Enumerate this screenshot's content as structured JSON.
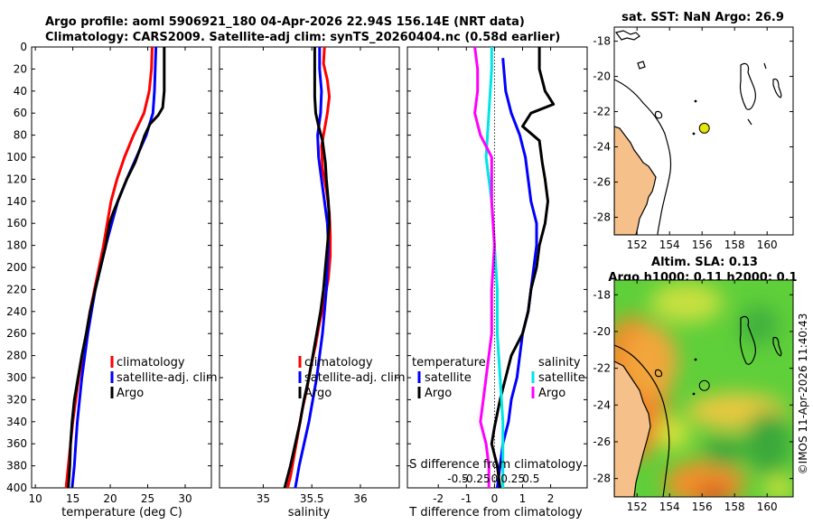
{
  "header": {
    "line1": "Argo profile: aoml 5906921_180 04-Apr-2026 22.94S 156.14E (NRT data)",
    "line2": "Climatology: CARS2009. Satellite-adj clim: synTS_20260404.nc (0.58d earlier)"
  },
  "watermark": "©IMOS 11-Apr-2026 11:40:43",
  "colors": {
    "clim": "#ff0000",
    "sat": "#0000ff",
    "argo": "#000000",
    "sal_sat": "#00e5e5",
    "sal_diff": "#ff00ff",
    "land": "#f5c08a"
  },
  "chart_data": [
    {
      "type": "line",
      "name": "temperature-profile",
      "xlabel": "temperature (deg C)",
      "xlim": [
        9.5,
        33.5
      ],
      "ylim": [
        0,
        400
      ],
      "y_reversed": true,
      "xticks": [
        10,
        15,
        20,
        25,
        30
      ],
      "yticks": [
        0,
        20,
        40,
        60,
        80,
        100,
        120,
        140,
        160,
        180,
        200,
        220,
        240,
        260,
        280,
        300,
        320,
        340,
        360,
        380,
        400
      ],
      "legend": [
        "climatology",
        "satellite-adj. clim",
        "Argo"
      ],
      "series": [
        {
          "name": "climatology",
          "color": "#ff0000",
          "points": [
            [
              25.6,
              0
            ],
            [
              25.5,
              20
            ],
            [
              25.2,
              40
            ],
            [
              24.5,
              60
            ],
            [
              23.1,
              80
            ],
            [
              21.9,
              100
            ],
            [
              20.9,
              120
            ],
            [
              20.1,
              140
            ],
            [
              19.6,
              160
            ],
            [
              19.1,
              180
            ],
            [
              18.5,
              200
            ],
            [
              17.9,
              220
            ],
            [
              17.3,
              240
            ],
            [
              16.8,
              260
            ],
            [
              16.3,
              280
            ],
            [
              15.8,
              300
            ],
            [
              15.4,
              320
            ],
            [
              15.0,
              340
            ],
            [
              14.7,
              360
            ],
            [
              14.4,
              380
            ],
            [
              14.1,
              400
            ]
          ]
        },
        {
          "name": "satellite-adj. clim",
          "color": "#0000ff",
          "points": [
            [
              26.1,
              0
            ],
            [
              26.0,
              20
            ],
            [
              25.9,
              40
            ],
            [
              25.7,
              60
            ],
            [
              24.8,
              80
            ],
            [
              23.5,
              100
            ],
            [
              22.2,
              120
            ],
            [
              21.0,
              140
            ],
            [
              20.2,
              160
            ],
            [
              19.4,
              180
            ],
            [
              18.7,
              200
            ],
            [
              18.0,
              220
            ],
            [
              17.5,
              240
            ],
            [
              17.0,
              260
            ],
            [
              16.6,
              280
            ],
            [
              16.2,
              300
            ],
            [
              15.9,
              320
            ],
            [
              15.6,
              340
            ],
            [
              15.4,
              360
            ],
            [
              15.2,
              380
            ],
            [
              14.9,
              400
            ]
          ]
        },
        {
          "name": "Argo",
          "color": "#000000",
          "points": [
            [
              27.2,
              0
            ],
            [
              27.2,
              20
            ],
            [
              27.2,
              40
            ],
            [
              27.0,
              55
            ],
            [
              26.4,
              62
            ],
            [
              25.3,
              70
            ],
            [
              24.6,
              80
            ],
            [
              24.0,
              92
            ],
            [
              23.3,
              105
            ],
            [
              22.2,
              120
            ],
            [
              21.6,
              130
            ],
            [
              21.0,
              140
            ],
            [
              20.4,
              150
            ],
            [
              19.9,
              160
            ],
            [
              19.4,
              180
            ],
            [
              18.7,
              200
            ],
            [
              18.0,
              220
            ],
            [
              17.3,
              240
            ],
            [
              16.8,
              260
            ],
            [
              16.2,
              280
            ],
            [
              15.7,
              300
            ],
            [
              15.2,
              320
            ],
            [
              14.9,
              340
            ],
            [
              14.7,
              360
            ],
            [
              14.6,
              380
            ],
            [
              14.4,
              400
            ]
          ]
        }
      ]
    },
    {
      "type": "line",
      "name": "salinity-profile",
      "xlabel": "salinity",
      "xlim": [
        34.55,
        36.4
      ],
      "ylim": [
        0,
        400
      ],
      "y_reversed": true,
      "xticks": [
        35,
        35.5,
        36
      ],
      "legend": [
        "climatology",
        "satellite-adj. clim",
        "Argo"
      ],
      "series": [
        {
          "name": "climatology",
          "color": "#ff0000",
          "points": [
            [
              35.63,
              0
            ],
            [
              35.62,
              15
            ],
            [
              35.66,
              30
            ],
            [
              35.68,
              45
            ],
            [
              35.66,
              60
            ],
            [
              35.63,
              75
            ],
            [
              35.6,
              90
            ],
            [
              35.61,
              110
            ],
            [
              35.65,
              130
            ],
            [
              35.68,
              150
            ],
            [
              35.69,
              170
            ],
            [
              35.69,
              190
            ],
            [
              35.67,
              210
            ],
            [
              35.63,
              230
            ],
            [
              35.58,
              250
            ],
            [
              35.54,
              270
            ],
            [
              35.49,
              290
            ],
            [
              35.45,
              310
            ],
            [
              35.4,
              330
            ],
            [
              35.36,
              350
            ],
            [
              35.32,
              370
            ],
            [
              35.28,
              390
            ],
            [
              35.25,
              400
            ]
          ]
        },
        {
          "name": "satellite-adj. clim",
          "color": "#0000ff",
          "points": [
            [
              35.58,
              0
            ],
            [
              35.58,
              20
            ],
            [
              35.6,
              40
            ],
            [
              35.59,
              60
            ],
            [
              35.56,
              80
            ],
            [
              35.57,
              100
            ],
            [
              35.6,
              120
            ],
            [
              35.63,
              140
            ],
            [
              35.66,
              160
            ],
            [
              35.67,
              180
            ],
            [
              35.66,
              200
            ],
            [
              35.65,
              220
            ],
            [
              35.63,
              240
            ],
            [
              35.61,
              260
            ],
            [
              35.58,
              280
            ],
            [
              35.55,
              300
            ],
            [
              35.51,
              320
            ],
            [
              35.47,
              340
            ],
            [
              35.42,
              360
            ],
            [
              35.37,
              380
            ],
            [
              35.33,
              400
            ]
          ]
        },
        {
          "name": "Argo",
          "color": "#000000",
          "points": [
            [
              35.53,
              0
            ],
            [
              35.53,
              25
            ],
            [
              35.53,
              45
            ],
            [
              35.54,
              60
            ],
            [
              35.57,
              72
            ],
            [
              35.61,
              85
            ],
            [
              35.64,
              105
            ],
            [
              35.65,
              120
            ],
            [
              35.67,
              140
            ],
            [
              35.68,
              160
            ],
            [
              35.66,
              180
            ],
            [
              35.64,
              200
            ],
            [
              35.62,
              220
            ],
            [
              35.59,
              240
            ],
            [
              35.55,
              260
            ],
            [
              35.51,
              280
            ],
            [
              35.47,
              300
            ],
            [
              35.42,
              320
            ],
            [
              35.38,
              340
            ],
            [
              35.33,
              360
            ],
            [
              35.28,
              380
            ],
            [
              35.22,
              400
            ]
          ]
        }
      ]
    },
    {
      "type": "line",
      "name": "difference-profile",
      "xlabel": "T difference from climatology",
      "xlabel_top": "S difference from climatology",
      "xlim": [
        -3.1,
        3.3
      ],
      "ylim": [
        0,
        400
      ],
      "y_reversed": true,
      "xticks": [
        -2,
        -1,
        0,
        1,
        2
      ],
      "xticks_s": [
        "-0.5",
        "-0.25",
        "0",
        "0.25",
        "0.5"
      ],
      "legend_left": [
        "temperature",
        "satellite",
        "Argo"
      ],
      "legend_right": [
        "salinity",
        "satellite",
        "Argo"
      ],
      "series": [
        {
          "name": "T satellite",
          "color": "#0000ff",
          "points": [
            [
              0.3,
              10
            ],
            [
              0.4,
              40
            ],
            [
              0.6,
              60
            ],
            [
              0.9,
              80
            ],
            [
              1.1,
              100
            ],
            [
              1.2,
              120
            ],
            [
              1.3,
              140
            ],
            [
              1.5,
              160
            ],
            [
              1.5,
              180
            ],
            [
              1.4,
              200
            ],
            [
              1.3,
              220
            ],
            [
              1.2,
              240
            ],
            [
              1.0,
              260
            ],
            [
              0.9,
              280
            ],
            [
              0.8,
              300
            ],
            [
              0.6,
              320
            ],
            [
              0.5,
              340
            ],
            [
              0.3,
              360
            ],
            [
              0.2,
              380
            ],
            [
              0.1,
              400
            ]
          ]
        },
        {
          "name": "T Argo",
          "color": "#000000",
          "points": [
            [
              1.6,
              0
            ],
            [
              1.6,
              20
            ],
            [
              1.8,
              40
            ],
            [
              2.1,
              52
            ],
            [
              1.3,
              60
            ],
            [
              1.0,
              72
            ],
            [
              1.6,
              85
            ],
            [
              1.7,
              105
            ],
            [
              1.8,
              120
            ],
            [
              1.9,
              140
            ],
            [
              1.8,
              160
            ],
            [
              1.6,
              180
            ],
            [
              1.5,
              200
            ],
            [
              1.3,
              220
            ],
            [
              1.2,
              240
            ],
            [
              1.0,
              260
            ],
            [
              0.6,
              280
            ],
            [
              0.4,
              300
            ],
            [
              0.2,
              320
            ],
            [
              0.0,
              345
            ],
            [
              -0.1,
              360
            ],
            [
              0.1,
              380
            ],
            [
              0.2,
              400
            ]
          ]
        },
        {
          "name": "S satellite",
          "color": "#00e5e5",
          "points": [
            [
              -0.1,
              0
            ],
            [
              -0.1,
              20
            ],
            [
              -0.2,
              60
            ],
            [
              -0.3,
              100
            ],
            [
              -0.1,
              140
            ],
            [
              0.0,
              180
            ],
            [
              0.1,
              220
            ],
            [
              0.1,
              260
            ],
            [
              0.2,
              300
            ],
            [
              0.3,
              340
            ],
            [
              0.3,
              380
            ],
            [
              0.3,
              400
            ]
          ]
        },
        {
          "name": "S Argo",
          "color": "#ff00ff",
          "points": [
            [
              -0.7,
              0
            ],
            [
              -0.6,
              20
            ],
            [
              -0.6,
              40
            ],
            [
              -0.7,
              60
            ],
            [
              -0.5,
              80
            ],
            [
              -0.1,
              100
            ],
            [
              -0.1,
              140
            ],
            [
              0.0,
              180
            ],
            [
              -0.1,
              220
            ],
            [
              -0.1,
              260
            ],
            [
              -0.2,
              280
            ],
            [
              -0.3,
              300
            ],
            [
              -0.4,
              320
            ],
            [
              -0.5,
              340
            ],
            [
              -0.3,
              360
            ],
            [
              -0.2,
              380
            ],
            [
              -0.2,
              400
            ]
          ]
        }
      ]
    },
    {
      "type": "map",
      "name": "sst-map",
      "title": "sat. SST: NaN Argo: 26.9",
      "xlim": [
        150.6,
        161.6
      ],
      "ylim": [
        -29,
        -17.2
      ],
      "xticks": [
        152,
        154,
        156,
        158,
        160
      ],
      "yticks": [
        -18,
        -20,
        -22,
        -24,
        -26,
        -28
      ],
      "argo_position": [
        156.14,
        -22.94
      ]
    },
    {
      "type": "map",
      "name": "sla-map",
      "title": "Altim. SLA: 0.13",
      "subtitle": "Argo h1000: 0.11 h2000: 0.1",
      "xlim": [
        150.6,
        161.6
      ],
      "ylim": [
        -29,
        -17.2
      ],
      "xticks": [
        152,
        154,
        156,
        158,
        160
      ],
      "yticks": [
        -18,
        -20,
        -22,
        -24,
        -26,
        -28
      ],
      "argo_position": [
        156.14,
        -22.94
      ]
    }
  ]
}
